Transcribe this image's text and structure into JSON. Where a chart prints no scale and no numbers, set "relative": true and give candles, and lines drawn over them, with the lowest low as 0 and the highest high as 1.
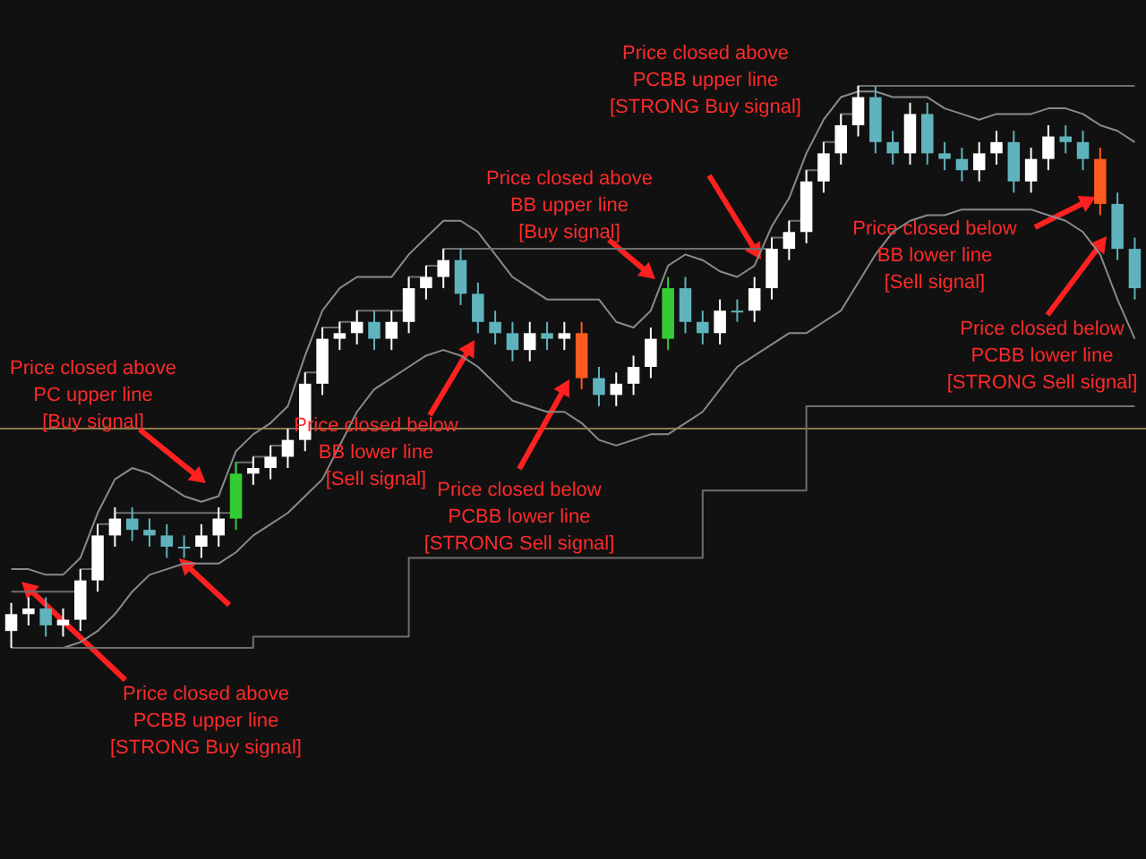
{
  "chart_data": {
    "type": "candlestick",
    "relative": true,
    "categories": [
      null,
      null,
      null,
      null,
      null,
      null,
      null,
      null,
      null,
      null,
      null,
      null,
      null,
      null,
      null,
      null,
      null,
      null,
      null,
      null,
      null,
      null,
      null,
      null,
      null,
      null,
      null,
      null,
      null,
      null,
      null,
      null,
      null,
      null,
      null,
      null,
      null,
      null,
      null,
      null,
      null,
      null,
      null,
      null,
      null,
      null,
      null,
      null,
      null,
      null,
      null,
      null,
      null,
      null,
      null,
      null,
      null,
      null,
      null,
      null,
      null,
      null,
      null,
      null,
      null,
      null
    ],
    "ohlc": [
      [
        0.03,
        0.08,
        0,
        0.06
      ],
      [
        0.06,
        0.09,
        0.04,
        0.07
      ],
      [
        0.07,
        0.09,
        0.02,
        0.04
      ],
      [
        0.04,
        0.07,
        0.02,
        0.05
      ],
      [
        0.05,
        0.14,
        0.03,
        0.12
      ],
      [
        0.12,
        0.22,
        0.1,
        0.2
      ],
      [
        0.2,
        0.25,
        0.18,
        0.23
      ],
      [
        0.23,
        0.25,
        0.19,
        0.21
      ],
      [
        0.21,
        0.23,
        0.18,
        0.2
      ],
      [
        0.2,
        0.22,
        0.16,
        0.18
      ],
      [
        0.18,
        0.2,
        0.16,
        0.18
      ],
      [
        0.18,
        0.22,
        0.16,
        0.2
      ],
      [
        0.2,
        0.25,
        0.18,
        0.23
      ],
      [
        0.23,
        0.33,
        0.21,
        0.31
      ],
      [
        0.31,
        0.34,
        0.29,
        0.32
      ],
      [
        0.32,
        0.36,
        0.3,
        0.34
      ],
      [
        0.34,
        0.39,
        0.32,
        0.37
      ],
      [
        0.37,
        0.49,
        0.35,
        0.47
      ],
      [
        0.47,
        0.57,
        0.45,
        0.55
      ],
      [
        0.55,
        0.58,
        0.53,
        0.56
      ],
      [
        0.56,
        0.6,
        0.54,
        0.58
      ],
      [
        0.58,
        0.6,
        0.53,
        0.55
      ],
      [
        0.55,
        0.6,
        0.53,
        0.58
      ],
      [
        0.58,
        0.66,
        0.56,
        0.64
      ],
      [
        0.64,
        0.68,
        0.62,
        0.66
      ],
      [
        0.66,
        0.71,
        0.64,
        0.69
      ],
      [
        0.69,
        0.71,
        0.61,
        0.63
      ],
      [
        0.63,
        0.65,
        0.56,
        0.58
      ],
      [
        0.58,
        0.6,
        0.54,
        0.56
      ],
      [
        0.56,
        0.58,
        0.51,
        0.53
      ],
      [
        0.53,
        0.58,
        0.51,
        0.56
      ],
      [
        0.56,
        0.58,
        0.53,
        0.55
      ],
      [
        0.55,
        0.58,
        0.53,
        0.56
      ],
      [
        0.56,
        0.58,
        0.46,
        0.48
      ],
      [
        0.48,
        0.5,
        0.43,
        0.45
      ],
      [
        0.45,
        0.49,
        0.43,
        0.47
      ],
      [
        0.47,
        0.52,
        0.45,
        0.5
      ],
      [
        0.5,
        0.57,
        0.48,
        0.55
      ],
      [
        0.55,
        0.66,
        0.53,
        0.64
      ],
      [
        0.64,
        0.66,
        0.56,
        0.58
      ],
      [
        0.58,
        0.6,
        0.54,
        0.56
      ],
      [
        0.56,
        0.62,
        0.54,
        0.6
      ],
      [
        0.6,
        0.62,
        0.58,
        0.6
      ],
      [
        0.6,
        0.66,
        0.58,
        0.64
      ],
      [
        0.64,
        0.73,
        0.62,
        0.71
      ],
      [
        0.71,
        0.76,
        0.69,
        0.74
      ],
      [
        0.74,
        0.85,
        0.72,
        0.83
      ],
      [
        0.83,
        0.9,
        0.81,
        0.88
      ],
      [
        0.88,
        0.95,
        0.86,
        0.93
      ],
      [
        0.93,
        1,
        0.91,
        0.98
      ],
      [
        0.98,
        1,
        0.88,
        0.9
      ],
      [
        0.9,
        0.92,
        0.86,
        0.88
      ],
      [
        0.88,
        0.97,
        0.86,
        0.95
      ],
      [
        0.95,
        0.97,
        0.86,
        0.88
      ],
      [
        0.88,
        0.9,
        0.85,
        0.87
      ],
      [
        0.87,
        0.89,
        0.83,
        0.85
      ],
      [
        0.85,
        0.9,
        0.83,
        0.88
      ],
      [
        0.88,
        0.92,
        0.86,
        0.9
      ],
      [
        0.9,
        0.92,
        0.81,
        0.83
      ],
      [
        0.83,
        0.89,
        0.81,
        0.87
      ],
      [
        0.87,
        0.93,
        0.85,
        0.91
      ],
      [
        0.91,
        0.93,
        0.88,
        0.9
      ],
      [
        0.9,
        0.92,
        0.85,
        0.87
      ],
      [
        0.87,
        0.89,
        0.77,
        0.79
      ],
      [
        0.79,
        0.81,
        0.69,
        0.71
      ],
      [
        0.71,
        0.73,
        0.62,
        0.64
      ]
    ],
    "colors": [
      "#ffffff",
      "#ffffff",
      "#5fb3bd",
      "#ffffff",
      "#ffffff",
      "#ffffff",
      "#ffffff",
      "#5fb3bd",
      "#5fb3bd",
      "#5fb3bd",
      "#5fb3bd",
      "#ffffff",
      "#ffffff",
      "#33cc33",
      "#ffffff",
      "#ffffff",
      "#ffffff",
      "#ffffff",
      "#ffffff",
      "#ffffff",
      "#ffffff",
      "#5fb3bd",
      "#ffffff",
      "#ffffff",
      "#ffffff",
      "#ffffff",
      "#5fb3bd",
      "#5fb3bd",
      "#5fb3bd",
      "#5fb3bd",
      "#ffffff",
      "#5fb3bd",
      "#ffffff",
      "#ff5a1f",
      "#5fb3bd",
      "#ffffff",
      "#ffffff",
      "#ffffff",
      "#33cc33",
      "#5fb3bd",
      "#5fb3bd",
      "#ffffff",
      "#5fb3bd",
      "#ffffff",
      "#ffffff",
      "#ffffff",
      "#ffffff",
      "#ffffff",
      "#ffffff",
      "#ffffff",
      "#5fb3bd",
      "#5fb3bd",
      "#ffffff",
      "#5fb3bd",
      "#5fb3bd",
      "#5fb3bd",
      "#ffffff",
      "#ffffff",
      "#5fb3bd",
      "#ffffff",
      "#ffffff",
      "#5fb3bd",
      "#5fb3bd",
      "#ff5a1f",
      "#5fb3bd",
      "#5fb3bd"
    ],
    "series": [
      {
        "type": "line",
        "color": "#8a8a8a",
        "values": [
          0.14,
          0.14,
          0.13,
          0.13,
          0.16,
          0.24,
          0.3,
          0.32,
          0.31,
          0.29,
          0.27,
          0.26,
          0.27,
          0.35,
          0.38,
          0.4,
          0.43,
          0.52,
          0.6,
          0.64,
          0.66,
          0.66,
          0.66,
          0.7,
          0.73,
          0.76,
          0.76,
          0.74,
          0.7,
          0.66,
          0.64,
          0.62,
          0.62,
          0.62,
          0.62,
          0.58,
          0.57,
          0.6,
          0.68,
          0.7,
          0.69,
          0.67,
          0.66,
          0.68,
          0.75,
          0.8,
          0.88,
          0.94,
          0.98,
          0.99,
          0.99,
          0.98,
          0.98,
          0.98,
          0.96,
          0.95,
          0.94,
          0.95,
          0.95,
          0.95,
          0.96,
          0.96,
          0.95,
          0.93,
          0.92,
          0.9
        ]
      },
      {
        "type": "line",
        "color": "#8a8a8a",
        "values": [
          0,
          0,
          0,
          0,
          0.01,
          0.03,
          0.06,
          0.1,
          0.13,
          0.14,
          0.15,
          0.15,
          0.15,
          0.17,
          0.2,
          0.22,
          0.24,
          0.27,
          0.3,
          0.36,
          0.42,
          0.46,
          0.48,
          0.5,
          0.52,
          0.53,
          0.52,
          0.5,
          0.47,
          0.44,
          0.43,
          0.42,
          0.42,
          0.4,
          0.37,
          0.36,
          0.37,
          0.38,
          0.38,
          0.4,
          0.42,
          0.46,
          0.5,
          0.52,
          0.54,
          0.56,
          0.56,
          0.58,
          0.6,
          0.65,
          0.7,
          0.74,
          0.76,
          0.77,
          0.77,
          0.78,
          0.78,
          0.78,
          0.78,
          0.78,
          0.77,
          0.76,
          0.74,
          0.7,
          0.62,
          0.55
        ]
      },
      {
        "type": "step",
        "color": "#6e6e6e",
        "values": [
          0.1,
          0.1,
          0.1,
          0.1,
          0.14,
          0.22,
          0.24,
          0.24,
          0.24,
          0.24,
          0.24,
          0.24,
          0.24,
          0.33,
          0.34,
          0.36,
          0.39,
          0.49,
          0.57,
          0.58,
          0.6,
          0.6,
          0.6,
          0.66,
          0.68,
          0.71,
          0.71,
          0.71,
          0.71,
          0.71,
          0.71,
          0.71,
          0.71,
          0.71,
          0.71,
          0.71,
          0.71,
          0.71,
          0.71,
          0.71,
          0.71,
          0.71,
          0.71,
          0.71,
          0.73,
          0.76,
          0.85,
          0.9,
          0.95,
          1,
          1,
          1,
          1,
          1,
          1,
          1,
          1,
          1,
          1,
          1,
          1,
          1,
          1,
          1,
          1,
          1
        ]
      },
      {
        "type": "step",
        "color": "#6e6e6e",
        "values": [
          0,
          0,
          0,
          0,
          0,
          0,
          0,
          0,
          0,
          0,
          0,
          0,
          0,
          0,
          0.02,
          0.02,
          0.02,
          0.02,
          0.02,
          0.02,
          0.02,
          0.02,
          0.02,
          0.16,
          0.16,
          0.16,
          0.16,
          0.16,
          0.16,
          0.16,
          0.16,
          0.16,
          0.16,
          0.16,
          0.16,
          0.16,
          0.16,
          0.16,
          0.16,
          0.16,
          0.28,
          0.28,
          0.28,
          0.28,
          0.28,
          0.28,
          0.43,
          0.43,
          0.43,
          0.43,
          0.43,
          0.43,
          0.43,
          0.43,
          0.43,
          0.43,
          0.43,
          0.43,
          0.43,
          0.43,
          0.43,
          0.43,
          0.43,
          0.43,
          0.43,
          0.43
        ]
      }
    ],
    "ref_lines": [
      {
        "axis": "y",
        "value": 0.39,
        "color": "#8a7a4a"
      }
    ],
    "annotations": [
      "Price closed above\nPC upper line\n[Buy signal]",
      "Price closed below\nBB lower line\n[Sell signal]",
      "Price closed below\nPCBB lower line\n[STRONG Sell signal]",
      "Price closed above\nBB upper line\n[Buy signal]",
      "Price closed above\nPCBB upper line\n[STRONG Buy signal]",
      "Price closed below\nBB lower line\n[Sell signal]",
      "Price closed below\nPCBB lower line\n[STRONG Sell signal]",
      "Price closed above\nPCBB upper line\n[STRONG Buy signal]"
    ]
  }
}
